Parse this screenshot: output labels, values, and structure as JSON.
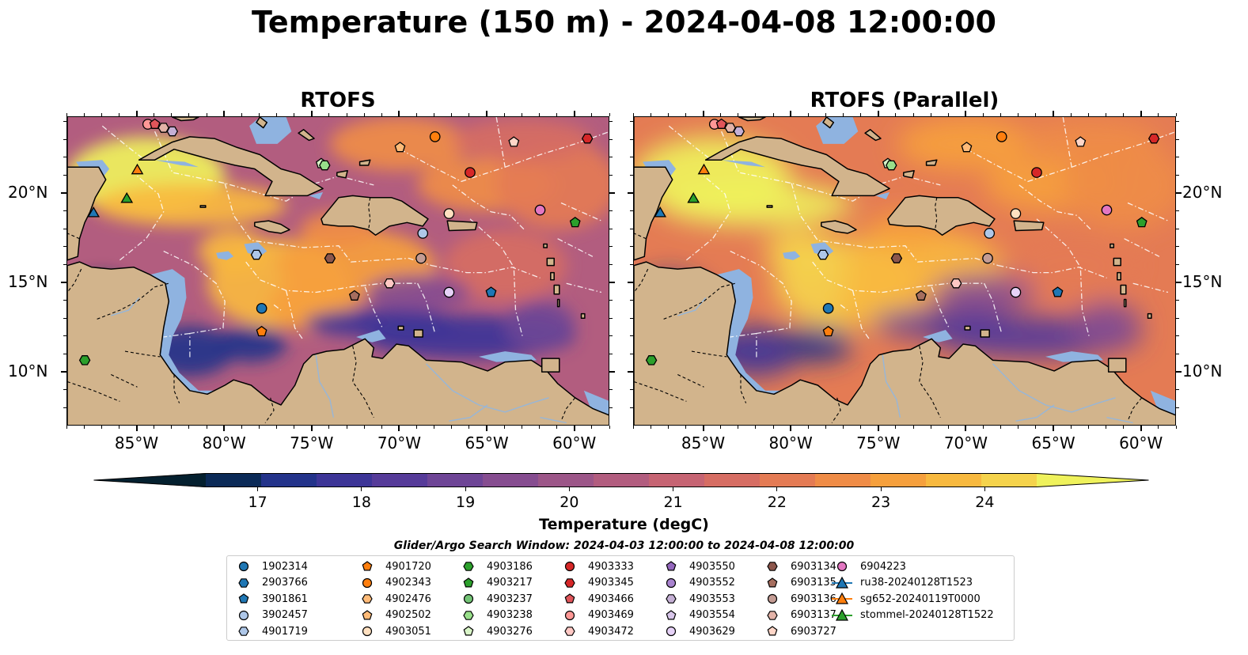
{
  "title": "Temperature (150 m) - 2024-04-08 12:00:00",
  "maps": [
    {
      "title": "RTOFS",
      "variant": "standard"
    },
    {
      "title": "RTOFS (Parallel)",
      "variant": "parallel"
    }
  ],
  "map_extent": {
    "lon_min": -89,
    "lon_max": -58,
    "lat_min": 7,
    "lat_max": 24.3
  },
  "lon_ticks": [
    {
      "value": -85,
      "label": "85°W"
    },
    {
      "value": -80,
      "label": "80°W"
    },
    {
      "value": -75,
      "label": "75°W"
    },
    {
      "value": -70,
      "label": "70°W"
    },
    {
      "value": -65,
      "label": "65°W"
    },
    {
      "value": -60,
      "label": "60°W"
    }
  ],
  "lat_ticks": [
    {
      "value": 20,
      "label": "20°N"
    },
    {
      "value": 15,
      "label": "15°N"
    },
    {
      "value": 10,
      "label": "10°N"
    }
  ],
  "colors": {
    "land": "#d2b48c",
    "shelf": "#8fb3e0",
    "sea_background": "#b25d78"
  },
  "colorbar": {
    "label": "Temperature (degC)",
    "min": 16.5,
    "max": 24.5,
    "extend": "both",
    "ticks": [
      17,
      18,
      19,
      20,
      21,
      22,
      23,
      24
    ],
    "tick_labels": [
      "17",
      "18",
      "19",
      "20",
      "21",
      "22",
      "23",
      "24"
    ],
    "colors": [
      "#04202f",
      "#0b2a57",
      "#23338a",
      "#3d3597",
      "#563b99",
      "#6e4596",
      "#864d90",
      "#9c5688",
      "#b25d7f",
      "#c66473",
      "#d66d63",
      "#e47b54",
      "#ef8c47",
      "#f6a03d",
      "#f8b93f",
      "#f5d34c",
      "#eff25c"
    ]
  },
  "search_window": "Glider/Argo Search Window: 2024-04-03 12:00:00 to 2024-04-08 12:00:00",
  "legend": [
    {
      "label": "1902314",
      "marker": "circle",
      "color": "#1f77b4"
    },
    {
      "label": "2903766",
      "marker": "hexagon",
      "color": "#1f77b4"
    },
    {
      "label": "3901861",
      "marker": "pentagon",
      "color": "#1f77b4"
    },
    {
      "label": "3902457",
      "marker": "circle",
      "color": "#aec7e8"
    },
    {
      "label": "4901719",
      "marker": "hexagon",
      "color": "#aec7e8"
    },
    {
      "label": "4901720",
      "marker": "pentagon",
      "color": "#ff7f0e"
    },
    {
      "label": "4902343",
      "marker": "circle",
      "color": "#ff7f0e"
    },
    {
      "label": "4902476",
      "marker": "hexagon",
      "color": "#ffbb78"
    },
    {
      "label": "4902502",
      "marker": "pentagon",
      "color": "#ffbb78"
    },
    {
      "label": "4903051",
      "marker": "circle",
      "color": "#ffe0c0"
    },
    {
      "label": "4903186",
      "marker": "hexagon",
      "color": "#2ca02c"
    },
    {
      "label": "4903217",
      "marker": "pentagon",
      "color": "#2ca02c"
    },
    {
      "label": "4903237",
      "marker": "circle",
      "color": "#74c476"
    },
    {
      "label": "4903238",
      "marker": "hexagon",
      "color": "#98df8a"
    },
    {
      "label": "4903276",
      "marker": "pentagon",
      "color": "#d9f5c8"
    },
    {
      "label": "4903333",
      "marker": "circle",
      "color": "#d62728"
    },
    {
      "label": "4903345",
      "marker": "hexagon",
      "color": "#d62728"
    },
    {
      "label": "4903466",
      "marker": "pentagon",
      "color": "#e0555a"
    },
    {
      "label": "4903469",
      "marker": "circle",
      "color": "#ff9896"
    },
    {
      "label": "4903472",
      "marker": "hexagon",
      "color": "#ffc8c4"
    },
    {
      "label": "4903550",
      "marker": "pentagon",
      "color": "#9467bd"
    },
    {
      "label": "4903552",
      "marker": "circle",
      "color": "#a983cf"
    },
    {
      "label": "4903553",
      "marker": "hexagon",
      "color": "#c5b0d5"
    },
    {
      "label": "4903554",
      "marker": "pentagon",
      "color": "#d8c6ea"
    },
    {
      "label": "4903629",
      "marker": "circle",
      "color": "#e6d2f7"
    },
    {
      "label": "6903134",
      "marker": "hexagon",
      "color": "#8c564b"
    },
    {
      "label": "6903135",
      "marker": "pentagon",
      "color": "#a66e5f"
    },
    {
      "label": "6903136",
      "marker": "circle",
      "color": "#c49c94"
    },
    {
      "label": "6903137",
      "marker": "hexagon",
      "color": "#e3b3a8"
    },
    {
      "label": "6903727",
      "marker": "pentagon",
      "color": "#ffd6c8"
    },
    {
      "label": "6904223",
      "marker": "circle",
      "color": "#e377c2"
    },
    {
      "label": "ru38-20240128T1523",
      "marker": "triangle-line",
      "color": "#1f77b4"
    },
    {
      "label": "sg652-20240119T0000",
      "marker": "triangle-line",
      "color": "#ff7f0e"
    },
    {
      "label": "stommel-20240128T1522",
      "marker": "triangle-line",
      "color": "#2ca02c"
    }
  ],
  "platforms": [
    {
      "id": "ru38-20240128T1523",
      "lon": -87.5,
      "lat": 18.9
    },
    {
      "id": "sg652-20240119T0000",
      "lon": -85.0,
      "lat": 21.3
    },
    {
      "id": "stommel-20240128T1522",
      "lon": -85.6,
      "lat": 19.7
    },
    {
      "id": "6904223",
      "lon": -62.0,
      "lat": 19.1
    },
    {
      "id": "4903217",
      "lon": -60.0,
      "lat": 18.4
    },
    {
      "id": "4903345",
      "lon": -59.3,
      "lat": 23.1
    },
    {
      "id": "4903333",
      "lon": -66.0,
      "lat": 21.2
    },
    {
      "id": "4902343",
      "lon": -68.0,
      "lat": 23.2
    },
    {
      "id": "4902502",
      "lon": -70.0,
      "lat": 22.6
    },
    {
      "id": "6903727",
      "lon": -63.5,
      "lat": 22.9
    },
    {
      "id": "4903051",
      "lon": -67.2,
      "lat": 18.9
    },
    {
      "id": "3902457",
      "lon": -68.7,
      "lat": 17.8
    },
    {
      "id": "6903136",
      "lon": -68.8,
      "lat": 16.4
    },
    {
      "id": "6903134",
      "lon": -74.0,
      "lat": 16.4
    },
    {
      "id": "4901719",
      "lon": -78.2,
      "lat": 16.6
    },
    {
      "id": "1902314",
      "lon": -77.9,
      "lat": 13.6
    },
    {
      "id": "4901720",
      "lon": -77.9,
      "lat": 12.3
    },
    {
      "id": "6903135",
      "lon": -72.6,
      "lat": 14.3
    },
    {
      "id": "4903472",
      "lon": -70.6,
      "lat": 15.0
    },
    {
      "id": "4903629",
      "lon": -67.2,
      "lat": 14.5
    },
    {
      "id": "3901861",
      "lon": -64.8,
      "lat": 14.5
    },
    {
      "id": "4903276",
      "lon": -74.5,
      "lat": 21.7
    },
    {
      "id": "4903238",
      "lon": -74.3,
      "lat": 21.6
    },
    {
      "id": "4903469",
      "lon": -84.4,
      "lat": 23.9
    },
    {
      "id": "4903466",
      "lon": -84.0,
      "lat": 23.9
    },
    {
      "id": "6903137",
      "lon": -83.5,
      "lat": 23.7
    },
    {
      "id": "4903553",
      "lon": -83.0,
      "lat": 23.5
    },
    {
      "id": "4903186",
      "lon": -88.0,
      "lat": 10.7
    }
  ]
}
